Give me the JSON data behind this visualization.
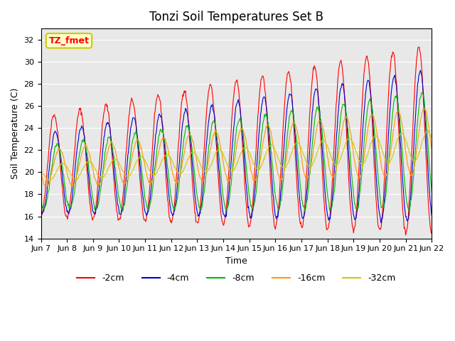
{
  "title": "Tonzi Soil Temperatures Set B",
  "xlabel": "Time",
  "ylabel": "Soil Temperature (C)",
  "ylim": [
    14,
    33
  ],
  "yticks": [
    14,
    16,
    18,
    20,
    22,
    24,
    26,
    28,
    30,
    32
  ],
  "x_tick_labels": [
    "Jun 7",
    "Jun 8",
    "Jun 9",
    "Jun 10",
    "Jun 11",
    "Jun 12",
    "Jun 13",
    "Jun 14",
    "Jun 15",
    "Jun 16",
    "Jun 17",
    "Jun 18",
    "Jun 19",
    "Jun 20",
    "Jun 21",
    "Jun 22"
  ],
  "legend_labels": [
    "-2cm",
    "-4cm",
    "-8cm",
    "-16cm",
    "-32cm"
  ],
  "annotation_text": "TZ_fmet",
  "annotation_box_color": "#ffffcc",
  "annotation_border_color": "#cccc00",
  "n_days": 15,
  "samples_per_day": 48,
  "series_colors": [
    "#ff0000",
    "#0000cc",
    "#00bb00",
    "#ff9900",
    "#cccc00"
  ]
}
